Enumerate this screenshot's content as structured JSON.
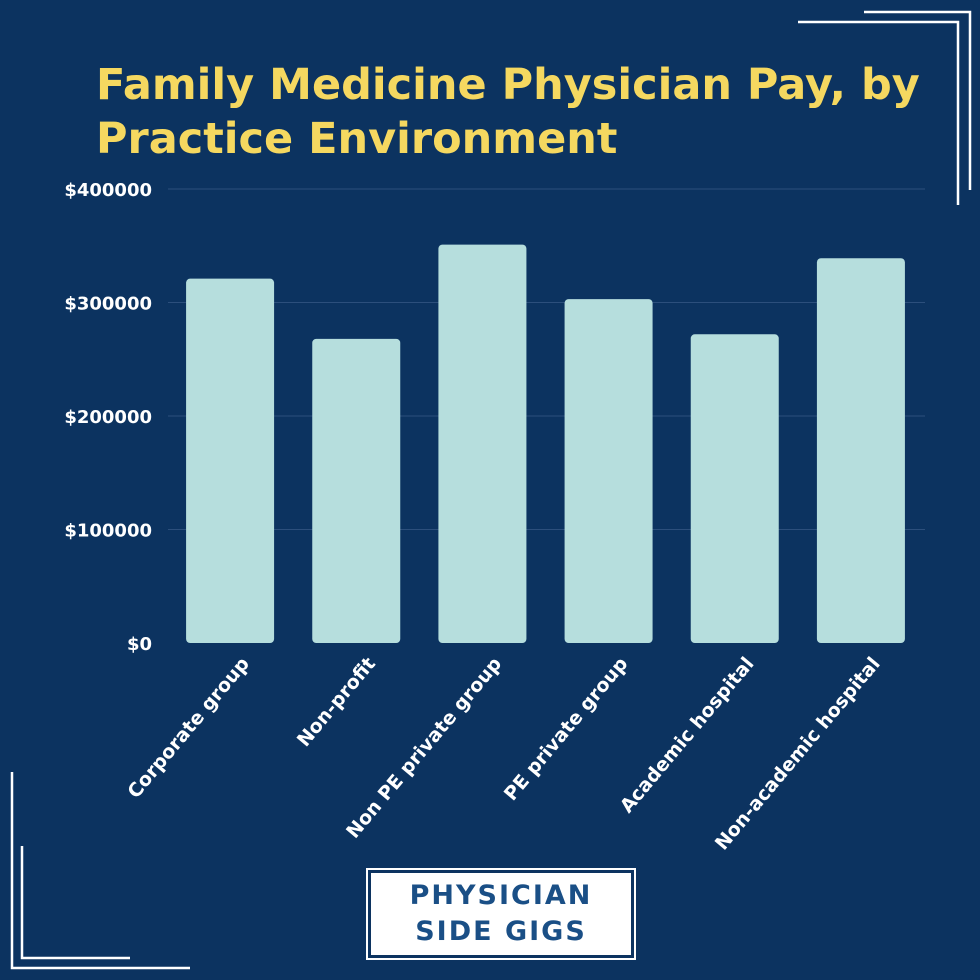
{
  "chart_data": {
    "type": "bar",
    "title": "Family Medicine Physician Pay, by Practice Environment",
    "categories": [
      "Corporate group",
      "Non-profit",
      "Non PE private group",
      "PE private group",
      "Academic hospital",
      "Non-academic hospital"
    ],
    "values": [
      321000,
      268000,
      351000,
      303000,
      272000,
      339000
    ],
    "ylim": [
      0,
      400000
    ],
    "yticks": [
      0,
      100000,
      200000,
      300000,
      400000
    ],
    "ytick_labels": [
      "$0",
      "$100000",
      "$200000",
      "$300000",
      "$400000"
    ],
    "xlabel": "",
    "ylabel": "",
    "grid": true,
    "legend": "none"
  },
  "branding": {
    "line1": "PHYSICIAN",
    "line2": "SIDE GIGS"
  },
  "colors": {
    "background": "#0c3360",
    "bar": "#b6dedd",
    "title": "#f5d860",
    "tick_text": "#ffffff",
    "gridline": "#2c4f7c",
    "logo_text": "#1a4f86"
  }
}
